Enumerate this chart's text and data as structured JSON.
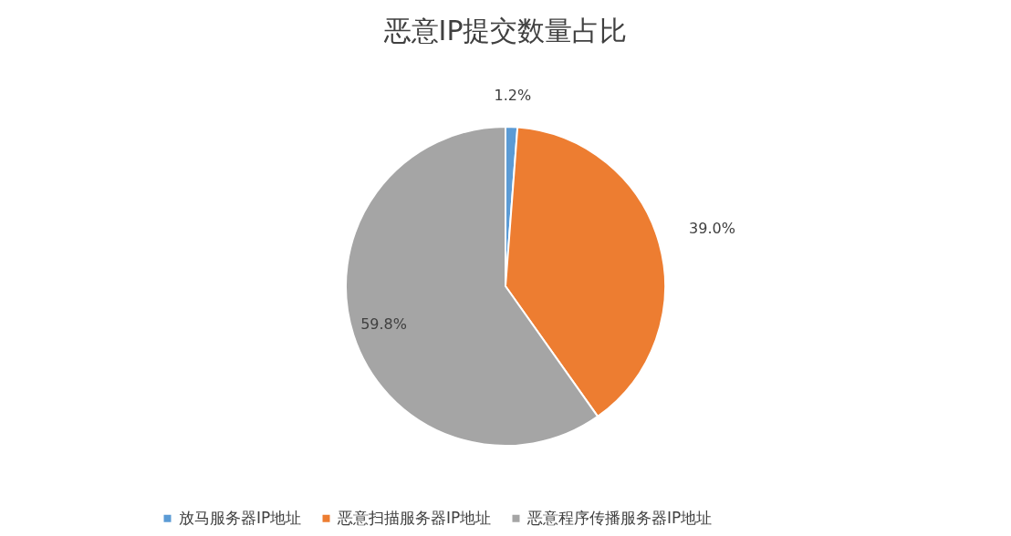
{
  "chart_data": {
    "type": "pie",
    "title": "恶意IP提交数量占比",
    "categories": [
      "放马服务器IP地址",
      "恶意扫描服务器IP地址",
      "恶意程序传播服务器IP地址"
    ],
    "values": [
      1.2,
      39.0,
      59.8
    ],
    "colors": [
      "#5b9bd5",
      "#ed7d31",
      "#a5a5a5"
    ],
    "value_labels": [
      "1.2%",
      "39.0%",
      "59.8%"
    ],
    "legend": "bottom"
  }
}
